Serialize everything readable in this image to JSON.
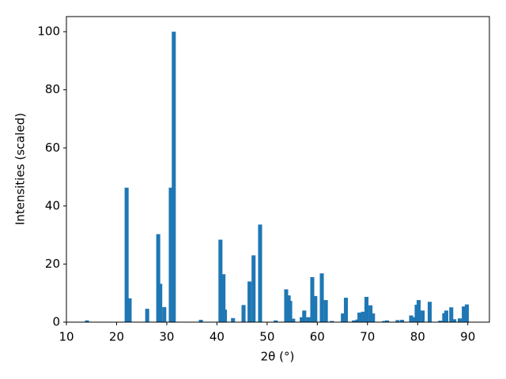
{
  "chart_data": {
    "type": "bar",
    "xlabel": "2θ (°)",
    "ylabel": "Intensities (scaled)",
    "color": "#1f77b4",
    "x": [
      14.1,
      22.0,
      22.6,
      26.1,
      28.3,
      28.7,
      29.5,
      30.8,
      31.4,
      36.8,
      40.7,
      41.3,
      41.6,
      43.2,
      45.3,
      46.5,
      47.3,
      48.6,
      51.7,
      53.8,
      54.3,
      54.6,
      55.2,
      56.9,
      57.4,
      58.2,
      59.0,
      59.6,
      60.9,
      61.7,
      62.9,
      65.1,
      65.7,
      67.3,
      68.0,
      68.4,
      69.1,
      69.8,
      70.6,
      71.1,
      73.3,
      73.9,
      76.0,
      76.9,
      78.7,
      79.1,
      79.8,
      80.2,
      81.0,
      82.4,
      84.5,
      85.3,
      85.7,
      86.7,
      87.3,
      88.4,
      89.2,
      89.8
    ],
    "values": [
      0.6,
      46.3,
      8.2,
      4.6,
      30.3,
      13.2,
      5.2,
      46.3,
      100,
      0.8,
      28.4,
      16.5,
      4.3,
      1.4,
      5.9,
      14.0,
      23.0,
      33.6,
      0.6,
      11.3,
      9.2,
      7.3,
      1.2,
      1.7,
      4.0,
      1.7,
      15.5,
      9.0,
      16.8,
      7.6,
      0.4,
      3.0,
      8.4,
      0.6,
      0.9,
      3.3,
      3.6,
      8.7,
      5.8,
      3.0,
      0.4,
      0.6,
      0.7,
      0.8,
      2.3,
      1.7,
      6.0,
      7.6,
      4.0,
      7.0,
      0.5,
      3.1,
      4.0,
      5.1,
      1.0,
      1.3,
      5.4,
      6.1
    ],
    "xlim": [
      10,
      94.3
    ],
    "xticks": [
      10,
      20,
      30,
      40,
      50,
      60,
      70,
      80,
      90
    ],
    "ylim": [
      0,
      105.2
    ],
    "yticks": [
      0,
      20,
      40,
      60,
      80,
      100
    ]
  }
}
